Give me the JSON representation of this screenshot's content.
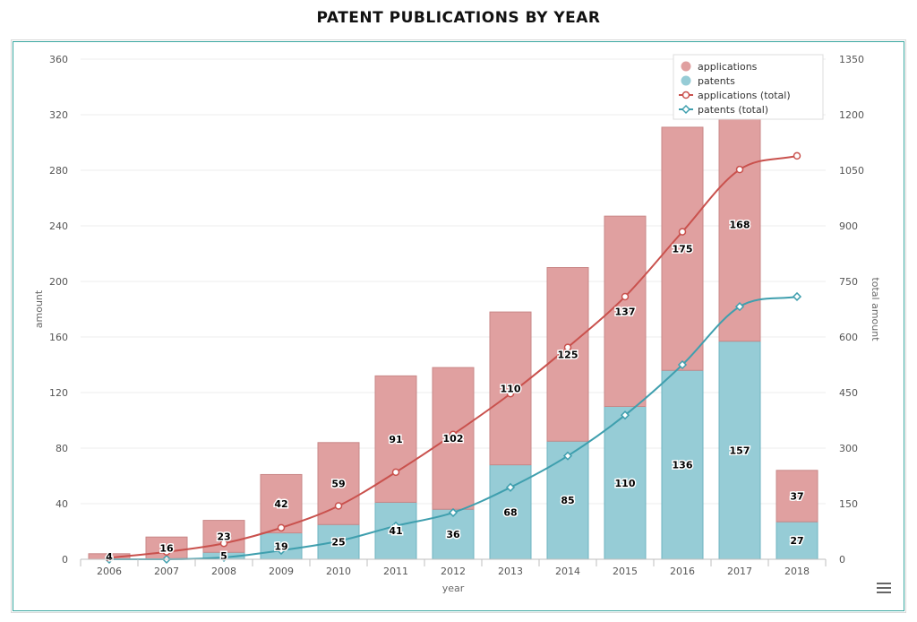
{
  "title": "PATENT PUBLICATIONS BY YEAR",
  "colors": {
    "applications": "#e0a0a0",
    "applications_stroke": "#c98787",
    "patents": "#96ccd6",
    "patents_stroke": "#6fb3c0",
    "applications_total": "#c9514d",
    "patents_total": "#3f9fae"
  },
  "chart_data": {
    "type": "bar",
    "stacked": true,
    "categories": [
      "2006",
      "2007",
      "2008",
      "2009",
      "2010",
      "2011",
      "2012",
      "2013",
      "2014",
      "2015",
      "2016",
      "2017",
      "2018"
    ],
    "xlabel": "year",
    "ylabel": "amount",
    "y2label": "total amount",
    "ylim": [
      0,
      360
    ],
    "yticks": [
      0,
      40,
      80,
      120,
      160,
      200,
      240,
      280,
      320,
      360
    ],
    "y2lim": [
      0,
      1350
    ],
    "y2ticks": [
      0,
      150,
      300,
      450,
      600,
      750,
      900,
      1050,
      1200,
      1350
    ],
    "grid": true,
    "legend_position": "top-right",
    "series": [
      {
        "name": "applications",
        "type": "bar",
        "axis": "left",
        "values": [
          4,
          16,
          23,
          42,
          59,
          91,
          102,
          110,
          125,
          137,
          175,
          168,
          37
        ]
      },
      {
        "name": "patents",
        "type": "bar",
        "axis": "left",
        "values": [
          0,
          0,
          5,
          19,
          25,
          41,
          36,
          68,
          85,
          110,
          136,
          157,
          27
        ]
      },
      {
        "name": "applications (total)",
        "type": "line",
        "axis": "right",
        "values": [
          4,
          20,
          43,
          85,
          144,
          235,
          337,
          447,
          572,
          709,
          884,
          1052,
          1089
        ]
      },
      {
        "name": "patents (total)",
        "type": "line",
        "axis": "right",
        "values": [
          0,
          0,
          5,
          24,
          49,
          90,
          126,
          194,
          279,
          389,
          525,
          682,
          709
        ]
      }
    ]
  }
}
